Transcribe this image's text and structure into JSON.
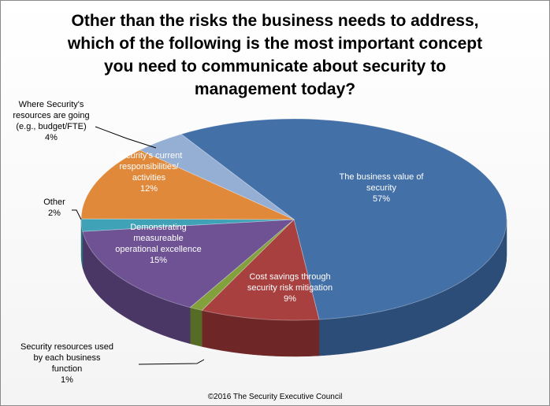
{
  "chart_data": {
    "type": "pie",
    "title_lines": [
      "Other than the risks the business needs to address,",
      "which of the following is the most important concept",
      "you need to communicate about security to",
      "management today?"
    ],
    "slices": [
      {
        "label_lines": [
          "The business value of",
          "security"
        ],
        "value_text": "57%",
        "value": 57,
        "color": "#4470A8",
        "dark": "#2C4D78"
      },
      {
        "label_lines": [
          "Cost savings through",
          "security risk mitigation"
        ],
        "value_text": "9%",
        "value": 9,
        "color": "#A84040",
        "dark": "#6E2626"
      },
      {
        "label_lines": [
          "Security resources used",
          "by each business",
          "function"
        ],
        "value_text": "1%",
        "value": 1,
        "color": "#82A03C",
        "dark": "#566C26"
      },
      {
        "label_lines": [
          "Demonstrating",
          "measureable",
          "operational excellence"
        ],
        "value_text": "15%",
        "value": 15,
        "color": "#6E5294",
        "dark": "#4A3766"
      },
      {
        "label_lines": [
          "Other"
        ],
        "value_text": "2%",
        "value": 2,
        "color": "#3FA2B7",
        "dark": "#28707E"
      },
      {
        "label_lines": [
          "Security's current",
          "responsibilities/",
          "activities"
        ],
        "value_text": "12%",
        "value": 12,
        "color": "#E0893A",
        "dark": "#A05C22"
      },
      {
        "label_lines": [
          "Where Security's",
          "resources are going",
          "(e.g., budget/FTE)"
        ],
        "value_text": "4%",
        "value": 4,
        "color": "#95AED3",
        "dark": "#66809E"
      }
    ],
    "footer": "©2016 The Security Executive Council"
  }
}
